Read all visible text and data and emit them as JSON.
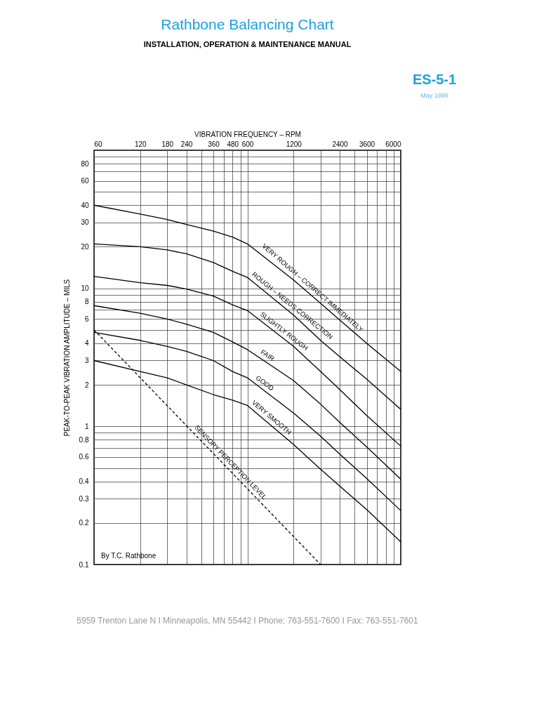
{
  "chart_data": {
    "type": "line",
    "title": "Rathbone Balancing Chart",
    "subtitle": "INSTALLATION, OPERATION & MAINTENANCE MANUAL",
    "xlabel": "VIBRATION FREQUENCY – RPM",
    "ylabel": "PEAK-TO-PEAK VIBRATION AMPLITUDE – MILS",
    "log": "xy",
    "grid": true,
    "marker": "none",
    "xlim": [
      60,
      6000
    ],
    "ylim": [
      0.1,
      100
    ],
    "xticks": [
      60,
      120,
      180,
      240,
      {
        "value": 300,
        "label": null
      },
      360,
      {
        "value": 420,
        "label": null
      },
      480,
      {
        "value": 540,
        "label": null
      },
      600,
      1200,
      {
        "value": 1800,
        "label": null
      },
      2400,
      {
        "value": 3000,
        "label": null
      },
      3600,
      {
        "value": 4200,
        "label": null
      },
      {
        "value": 4800,
        "label": null
      },
      {
        "value": 5400,
        "label": null
      },
      6000
    ],
    "yticks": [
      0.1,
      0.2,
      0.3,
      0.4,
      {
        "value": 0.5,
        "label": null
      },
      0.6,
      {
        "value": 0.7,
        "label": null
      },
      0.8,
      {
        "value": 0.9,
        "label": null
      },
      1,
      2,
      3,
      4,
      {
        "value": 5,
        "label": null
      },
      6,
      {
        "value": 7,
        "label": null
      },
      8,
      {
        "value": 9,
        "label": null
      },
      10,
      20,
      30,
      40,
      {
        "value": 50,
        "label": null
      },
      60,
      {
        "value": 70,
        "label": null
      },
      80,
      {
        "value": 90,
        "label": null
      }
    ],
    "series": [
      {
        "color": "#000000",
        "line_style": "solid",
        "x": [
          60,
          120,
          180,
          240,
          360,
          480,
          600,
          1200,
          1800,
          2400,
          3600,
          6000
        ],
        "values": [
          40,
          34.5,
          31.5,
          29,
          26,
          23.5,
          21,
          11.5,
          7.8,
          5.9,
          4.0,
          2.5
        ]
      },
      {
        "color": "#000000",
        "line_style": "solid",
        "x": [
          60,
          120,
          180,
          240,
          360,
          480,
          600,
          1200,
          1800,
          2400,
          3600,
          6000
        ],
        "values": [
          21,
          20,
          19,
          17.8,
          15.4,
          13.3,
          12,
          6.4,
          4.2,
          3.2,
          2.2,
          1.33
        ]
      },
      {
        "color": "#000000",
        "line_style": "solid",
        "x": [
          60,
          120,
          180,
          240,
          360,
          480,
          600,
          1200,
          1800,
          2400,
          3600,
          6000
        ],
        "values": [
          12.2,
          11,
          10.5,
          9.9,
          8.8,
          7.6,
          6.9,
          3.8,
          2.5,
          1.85,
          1.2,
          0.72
        ]
      },
      {
        "color": "#000000",
        "line_style": "solid",
        "x": [
          60,
          120,
          180,
          240,
          360,
          480,
          600,
          1200,
          1800,
          2400,
          3600,
          6000
        ],
        "values": [
          7.5,
          6.6,
          6.0,
          5.5,
          4.8,
          4.1,
          3.6,
          2.15,
          1.45,
          1.07,
          0.71,
          0.415
        ]
      },
      {
        "color": "#000000",
        "line_style": "solid",
        "x": [
          60,
          120,
          180,
          240,
          360,
          480,
          600,
          1200,
          1800,
          2400,
          3600,
          6000
        ],
        "values": [
          4.8,
          4.2,
          3.8,
          3.5,
          3.0,
          2.5,
          2.25,
          1.25,
          0.85,
          0.63,
          0.42,
          0.246
        ]
      },
      {
        "color": "#000000",
        "line_style": "solid",
        "x": [
          60,
          120,
          180,
          240,
          360,
          480,
          600,
          1200,
          1800,
          2400,
          3600,
          6000
        ],
        "values": [
          3.0,
          2.5,
          2.25,
          2.0,
          1.7,
          1.55,
          1.42,
          0.74,
          0.49,
          0.37,
          0.25,
          0.146
        ]
      },
      {
        "color": "#000000",
        "line_style": "dashed",
        "x": [
          60,
          1800
        ],
        "values": [
          5,
          0.1
        ]
      }
    ],
    "annotations": [
      "ES-5-1",
      "May 1996",
      "By T.C. Rathbone",
      "5959 Trenton Lane N  I  Minneapolis, MN 55442  I  Phone: 763-551-7600  I  Fax: 763-551-7601",
      {
        "text": "VERY ROUGH – CORRECT IMMEDIATELY",
        "x": 1500,
        "y": 9.3
      },
      {
        "text": "ROUGH – NEEDS CORRECTION",
        "x": 1110,
        "y": 6.9
      },
      {
        "text": "SLIGHTLY ROUGH",
        "x": 980,
        "y": 4.5
      },
      {
        "text": "FAIR",
        "x": 770,
        "y": 2.99
      },
      {
        "text": "GOOD",
        "x": 735,
        "y": 1.89
      },
      {
        "text": "VERY SMOOTH",
        "x": 810,
        "y": 1.07
      },
      {
        "text": "SENSORY PERCEPTION LEVEL",
        "x": 435,
        "y": 0.51
      }
    ]
  }
}
